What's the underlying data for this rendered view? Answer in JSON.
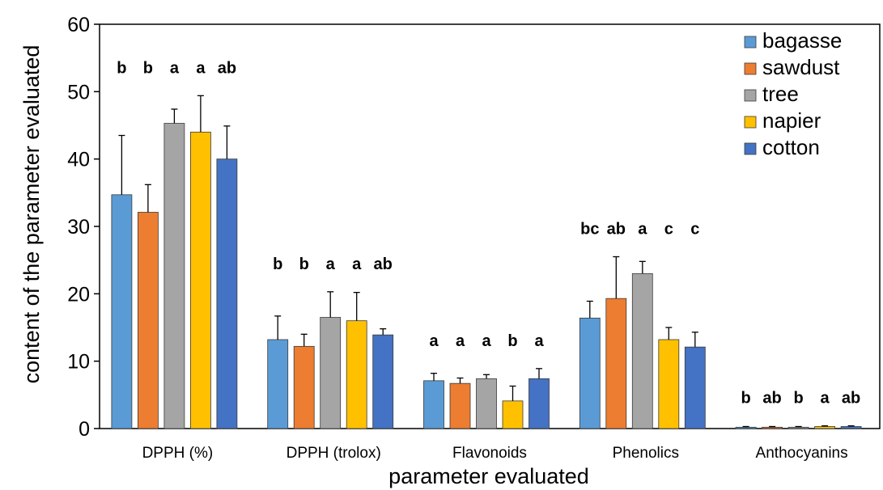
{
  "chart_data": {
    "type": "bar",
    "xlabel": "parameter evaluated",
    "ylabel": "content of the parameter evaluated",
    "ylim": [
      0,
      60
    ],
    "yticks": [
      0,
      10,
      20,
      30,
      40,
      50,
      60
    ],
    "grid": false,
    "legend_position": "top-right",
    "categories": [
      "DPPH (%)",
      "DPPH (trolox)",
      "Flavonoids",
      "Phenolics",
      "Anthocyanins"
    ],
    "series": [
      {
        "name": "bagasse",
        "color": "#5B9BD5",
        "values": [
          34.7,
          13.2,
          7.1,
          16.4,
          0.2
        ],
        "errors": [
          8.8,
          3.5,
          1.1,
          2.5,
          0.1
        ],
        "letters": [
          "b",
          "b",
          "a",
          "bc",
          "b"
        ]
      },
      {
        "name": "sawdust",
        "color": "#ED7D31",
        "values": [
          32.1,
          12.2,
          6.7,
          19.3,
          0.2
        ],
        "errors": [
          4.1,
          1.8,
          0.8,
          6.2,
          0.1
        ],
        "letters": [
          "b",
          "b",
          "a",
          "ab",
          "ab"
        ]
      },
      {
        "name": "tree",
        "color": "#A5A5A5",
        "values": [
          45.3,
          16.5,
          7.4,
          23.0,
          0.2
        ],
        "errors": [
          2.1,
          3.8,
          0.6,
          1.8,
          0.1
        ],
        "letters": [
          "a",
          "a",
          "a",
          "a",
          "b"
        ]
      },
      {
        "name": "napier",
        "color": "#FFC000",
        "values": [
          44.0,
          16.0,
          4.1,
          13.2,
          0.3
        ],
        "errors": [
          5.4,
          4.2,
          2.2,
          1.8,
          0.1
        ],
        "letters": [
          "a",
          "a",
          "b",
          "c",
          "a"
        ]
      },
      {
        "name": "cotton",
        "color": "#4472C4",
        "values": [
          40.0,
          13.9,
          7.4,
          12.1,
          0.3
        ],
        "errors": [
          4.9,
          0.9,
          1.5,
          2.2,
          0.1
        ],
        "letters": [
          "ab",
          "ab",
          "a",
          "c",
          "ab"
        ]
      }
    ]
  }
}
